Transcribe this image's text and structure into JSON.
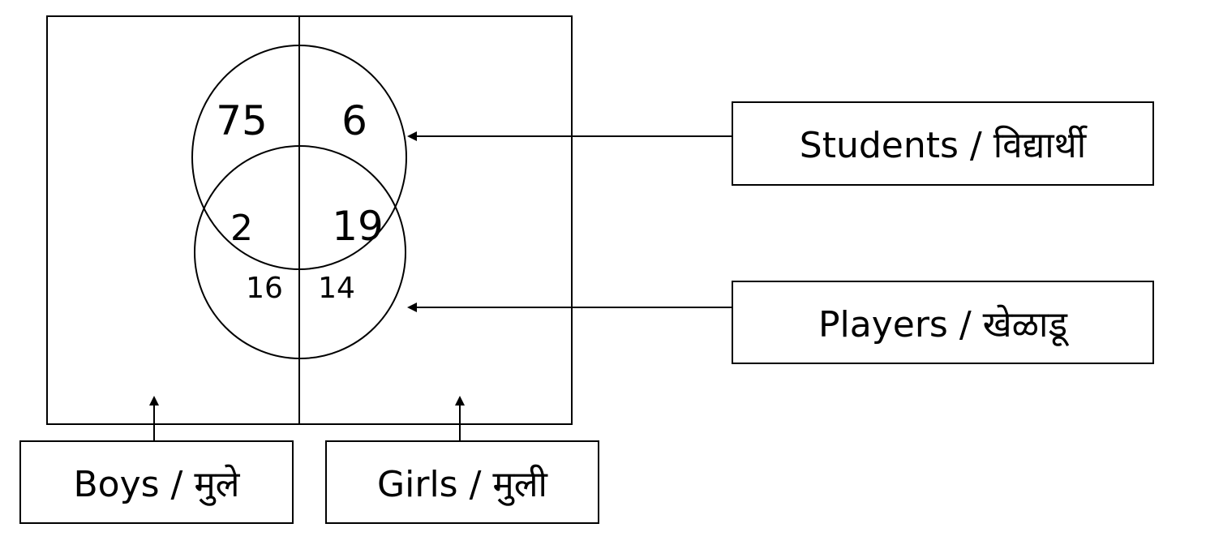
{
  "regions": {
    "boys_students_only": "75",
    "girls_students_only": "6",
    "boys_students_players": "2",
    "girls_students_players": "19",
    "boys_players_only": "16",
    "girls_players_only": "14"
  },
  "labels": {
    "students": "Students /  विद्यार्थी",
    "players": "Players / खेळाडू",
    "boys": "Boys / मुले",
    "girls": "Girls / मुली"
  },
  "colors": {
    "line": "#000000",
    "background": "#ffffff"
  }
}
